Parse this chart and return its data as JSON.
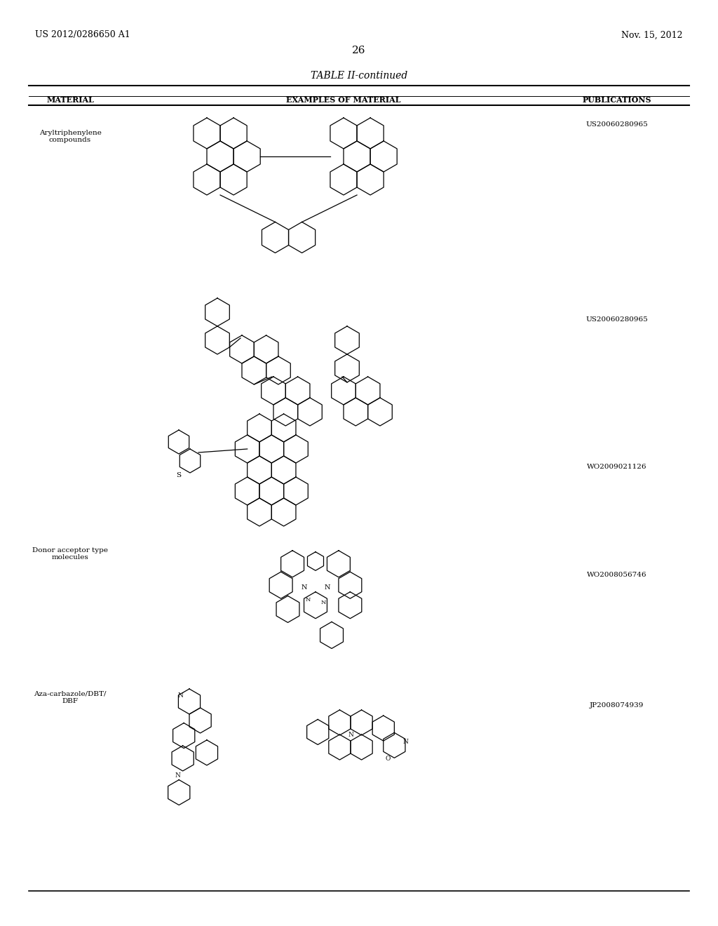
{
  "background_color": "#ffffff",
  "page_number": "26",
  "patent_left": "US 2012/0286650 A1",
  "patent_right": "Nov. 15, 2012",
  "table_title": "TABLE II-continued",
  "col_material": "MATERIAL",
  "col_examples": "EXAMPLES OF MATERIAL",
  "col_publications": "PUBLICATIONS",
  "fig_width": 10.24,
  "fig_height": 13.2,
  "dpi": 100
}
